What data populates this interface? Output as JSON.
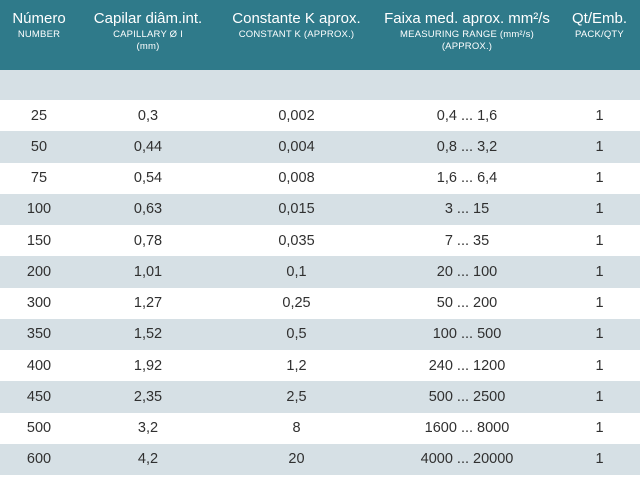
{
  "header": {
    "col1_main": "Número",
    "col1_sub": "NUMBER",
    "col2_main": "Capilar diâm.int.",
    "col2_sub1": "CAPILLARY Ø I",
    "col2_sub2": "(mm)",
    "col3_main": "Constante K aprox.",
    "col3_sub": "CONSTANT K (APPROX.)",
    "col4_main": "Faixa med. aprox. mm²/s",
    "col4_sub1": "MEASURING RANGE (mm²/s)",
    "col4_sub2": "(APPROX.)",
    "col5_main": "Qt/Emb.",
    "col5_sub": "PACK/QTY"
  },
  "rows": [
    {
      "number": "25",
      "capillary": "0,3",
      "constant": "0,002",
      "range": "0,4 ... 1,6",
      "qty": "1"
    },
    {
      "number": "50",
      "capillary": "0,44",
      "constant": "0,004",
      "range": "0,8 ... 3,2",
      "qty": "1"
    },
    {
      "number": "75",
      "capillary": "0,54",
      "constant": "0,008",
      "range": "1,6 ... 6,4",
      "qty": "1"
    },
    {
      "number": "100",
      "capillary": "0,63",
      "constant": "0,015",
      "range": "3 ... 15",
      "qty": "1"
    },
    {
      "number": "150",
      "capillary": "0,78",
      "constant": "0,035",
      "range": "7 ... 35",
      "qty": "1"
    },
    {
      "number": "200",
      "capillary": "1,01",
      "constant": "0,1",
      "range": "20 ... 100",
      "qty": "1"
    },
    {
      "number": "300",
      "capillary": "1,27",
      "constant": "0,25",
      "range": "50 ... 200",
      "qty": "1"
    },
    {
      "number": "350",
      "capillary": "1,52",
      "constant": "0,5",
      "range": "100 ... 500",
      "qty": "1"
    },
    {
      "number": "400",
      "capillary": "1,92",
      "constant": "1,2",
      "range": "240 ... 1200",
      "qty": "1"
    },
    {
      "number": "450",
      "capillary": "2,35",
      "constant": "2,5",
      "range": "500 ... 2500",
      "qty": "1"
    },
    {
      "number": "500",
      "capillary": "3,2",
      "constant": "8",
      "range": "1600 ... 8000",
      "qty": "1"
    },
    {
      "number": "600",
      "capillary": "4,2",
      "constant": "20",
      "range": "4000 ... 20000",
      "qty": "1"
    }
  ],
  "colors": {
    "header_bg": "#2f7a8a",
    "stripe": "#d6e0e5",
    "text": "#303030"
  }
}
